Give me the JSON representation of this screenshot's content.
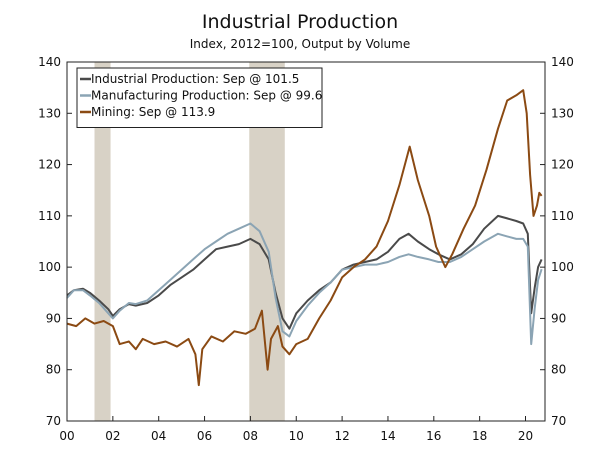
{
  "chart_data": {
    "type": "line",
    "title": "Industrial Production",
    "subtitle": "Index, 2012=100, Output by Volume",
    "xlabel": "",
    "ylabel": "",
    "xlim": [
      2000,
      2020.85
    ],
    "ylim": [
      70,
      140
    ],
    "x_ticks": [
      2000,
      2002,
      2004,
      2006,
      2008,
      2010,
      2012,
      2014,
      2016,
      2018,
      2020
    ],
    "x_tick_labels": [
      "00",
      "02",
      "04",
      "06",
      "08",
      "10",
      "12",
      "14",
      "16",
      "18",
      "20"
    ],
    "y_ticks": [
      70,
      80,
      90,
      100,
      110,
      120,
      130,
      140
    ],
    "y_tick_labels": [
      "70",
      "80",
      "90",
      "100",
      "110",
      "120",
      "130",
      "140"
    ],
    "recessions": [
      [
        2001.2,
        2001.9
      ],
      [
        2007.95,
        2009.5
      ]
    ],
    "legend_position": "top-left",
    "series": [
      {
        "name": "Industrial Production: Sep @ 101.5",
        "color": "#4a4a4a",
        "points": [
          [
            2000.0,
            94.5
          ],
          [
            2000.3,
            95.5
          ],
          [
            2000.7,
            95.8
          ],
          [
            2001.0,
            95.0
          ],
          [
            2001.4,
            93.5
          ],
          [
            2001.8,
            91.8
          ],
          [
            2002.0,
            90.5
          ],
          [
            2002.3,
            91.8
          ],
          [
            2002.7,
            92.8
          ],
          [
            2003.0,
            92.5
          ],
          [
            2003.5,
            93.0
          ],
          [
            2004.0,
            94.5
          ],
          [
            2004.5,
            96.5
          ],
          [
            2005.0,
            98.0
          ],
          [
            2005.5,
            99.5
          ],
          [
            2006.0,
            101.5
          ],
          [
            2006.5,
            103.5
          ],
          [
            2007.0,
            104.0
          ],
          [
            2007.5,
            104.5
          ],
          [
            2008.0,
            105.5
          ],
          [
            2008.4,
            104.5
          ],
          [
            2008.8,
            101.5
          ],
          [
            2009.1,
            95.0
          ],
          [
            2009.4,
            90.0
          ],
          [
            2009.7,
            88.0
          ],
          [
            2010.0,
            91.0
          ],
          [
            2010.5,
            93.5
          ],
          [
            2011.0,
            95.5
          ],
          [
            2011.5,
            97.0
          ],
          [
            2012.0,
            99.5
          ],
          [
            2012.5,
            100.5
          ],
          [
            2013.0,
            101.0
          ],
          [
            2013.5,
            101.5
          ],
          [
            2014.0,
            103.0
          ],
          [
            2014.5,
            105.5
          ],
          [
            2014.9,
            106.5
          ],
          [
            2015.3,
            105.0
          ],
          [
            2015.8,
            103.5
          ],
          [
            2016.2,
            102.5
          ],
          [
            2016.7,
            101.5
          ],
          [
            2017.2,
            102.5
          ],
          [
            2017.7,
            104.5
          ],
          [
            2018.2,
            107.5
          ],
          [
            2018.8,
            110.0
          ],
          [
            2019.2,
            109.5
          ],
          [
            2019.6,
            109.0
          ],
          [
            2019.9,
            108.5
          ],
          [
            2020.1,
            106.5
          ],
          [
            2020.25,
            91.0
          ],
          [
            2020.4,
            96.0
          ],
          [
            2020.55,
            100.0
          ],
          [
            2020.7,
            101.5
          ]
        ]
      },
      {
        "name": "Manufacturing Production: Sep @ 99.6",
        "color": "#8ba4b4",
        "points": [
          [
            2000.0,
            94.0
          ],
          [
            2000.3,
            95.5
          ],
          [
            2000.7,
            95.5
          ],
          [
            2001.0,
            94.5
          ],
          [
            2001.4,
            93.0
          ],
          [
            2001.8,
            91.0
          ],
          [
            2002.0,
            90.0
          ],
          [
            2002.3,
            91.5
          ],
          [
            2002.7,
            93.0
          ],
          [
            2003.0,
            92.8
          ],
          [
            2003.5,
            93.5
          ],
          [
            2004.0,
            95.5
          ],
          [
            2004.5,
            97.5
          ],
          [
            2005.0,
            99.5
          ],
          [
            2005.5,
            101.5
          ],
          [
            2006.0,
            103.5
          ],
          [
            2006.5,
            105.0
          ],
          [
            2007.0,
            106.5
          ],
          [
            2007.5,
            107.5
          ],
          [
            2008.0,
            108.5
          ],
          [
            2008.4,
            107.0
          ],
          [
            2008.8,
            103.0
          ],
          [
            2009.1,
            94.0
          ],
          [
            2009.4,
            87.5
          ],
          [
            2009.7,
            86.5
          ],
          [
            2010.0,
            89.5
          ],
          [
            2010.5,
            92.5
          ],
          [
            2011.0,
            95.0
          ],
          [
            2011.5,
            97.0
          ],
          [
            2012.0,
            99.5
          ],
          [
            2012.5,
            100.0
          ],
          [
            2013.0,
            100.5
          ],
          [
            2013.5,
            100.5
          ],
          [
            2014.0,
            101.0
          ],
          [
            2014.5,
            102.0
          ],
          [
            2014.9,
            102.5
          ],
          [
            2015.3,
            102.0
          ],
          [
            2015.8,
            101.5
          ],
          [
            2016.2,
            101.0
          ],
          [
            2016.7,
            101.0
          ],
          [
            2017.2,
            102.0
          ],
          [
            2017.7,
            103.5
          ],
          [
            2018.2,
            105.0
          ],
          [
            2018.8,
            106.5
          ],
          [
            2019.2,
            106.0
          ],
          [
            2019.6,
            105.5
          ],
          [
            2019.9,
            105.5
          ],
          [
            2020.1,
            104.0
          ],
          [
            2020.25,
            85.0
          ],
          [
            2020.4,
            92.0
          ],
          [
            2020.55,
            97.5
          ],
          [
            2020.7,
            99.6
          ]
        ]
      },
      {
        "name": "Mining: Sep @ 113.9",
        "color": "#8b4a13",
        "points": [
          [
            2000.0,
            89.0
          ],
          [
            2000.4,
            88.5
          ],
          [
            2000.8,
            90.0
          ],
          [
            2001.2,
            89.0
          ],
          [
            2001.6,
            89.5
          ],
          [
            2002.0,
            88.5
          ],
          [
            2002.3,
            85.0
          ],
          [
            2002.7,
            85.5
          ],
          [
            2003.0,
            84.0
          ],
          [
            2003.3,
            86.0
          ],
          [
            2003.8,
            85.0
          ],
          [
            2004.3,
            85.5
          ],
          [
            2004.8,
            84.5
          ],
          [
            2005.3,
            86.0
          ],
          [
            2005.6,
            83.0
          ],
          [
            2005.75,
            77.0
          ],
          [
            2005.9,
            84.0
          ],
          [
            2006.3,
            86.5
          ],
          [
            2006.8,
            85.5
          ],
          [
            2007.3,
            87.5
          ],
          [
            2007.8,
            87.0
          ],
          [
            2008.2,
            88.0
          ],
          [
            2008.5,
            91.5
          ],
          [
            2008.75,
            80.0
          ],
          [
            2008.9,
            86.0
          ],
          [
            2009.2,
            88.5
          ],
          [
            2009.4,
            84.5
          ],
          [
            2009.7,
            83.0
          ],
          [
            2010.0,
            85.0
          ],
          [
            2010.5,
            86.0
          ],
          [
            2011.0,
            90.0
          ],
          [
            2011.5,
            93.5
          ],
          [
            2012.0,
            98.0
          ],
          [
            2012.5,
            100.0
          ],
          [
            2013.0,
            101.5
          ],
          [
            2013.5,
            104.0
          ],
          [
            2014.0,
            109.0
          ],
          [
            2014.5,
            116.0
          ],
          [
            2014.95,
            123.5
          ],
          [
            2015.3,
            117.0
          ],
          [
            2015.8,
            110.0
          ],
          [
            2016.1,
            104.0
          ],
          [
            2016.5,
            100.0
          ],
          [
            2016.8,
            102.5
          ],
          [
            2017.3,
            107.5
          ],
          [
            2017.8,
            112.0
          ],
          [
            2018.3,
            119.0
          ],
          [
            2018.8,
            127.0
          ],
          [
            2019.2,
            132.5
          ],
          [
            2019.6,
            133.5
          ],
          [
            2019.9,
            134.5
          ],
          [
            2020.05,
            130.0
          ],
          [
            2020.2,
            118.0
          ],
          [
            2020.35,
            110.0
          ],
          [
            2020.5,
            112.0
          ],
          [
            2020.6,
            114.5
          ],
          [
            2020.7,
            113.9
          ]
        ]
      }
    ]
  }
}
